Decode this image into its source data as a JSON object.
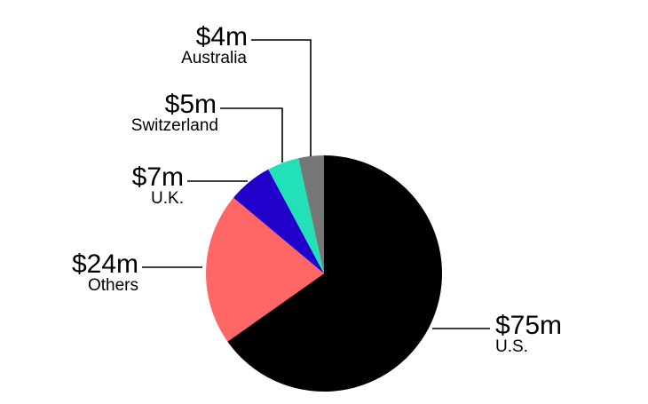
{
  "chart_data": {
    "type": "pie",
    "slices": [
      {
        "label": "U.S.",
        "value_label": "$75m",
        "value": 75,
        "color": "#000000"
      },
      {
        "label": "Others",
        "value_label": "$24m",
        "value": 24,
        "color": "#ff6666"
      },
      {
        "label": "U.K.",
        "value_label": "$7m",
        "value": 7,
        "color": "#2200cc"
      },
      {
        "label": "Switzerland",
        "value_label": "$5m",
        "value": 5,
        "color": "#22e0b8"
      },
      {
        "label": "Australia",
        "value_label": "$4m",
        "value": 4,
        "color": "#777777"
      }
    ],
    "start_angle_deg": 0,
    "direction": "clockwise",
    "legend": "none"
  }
}
